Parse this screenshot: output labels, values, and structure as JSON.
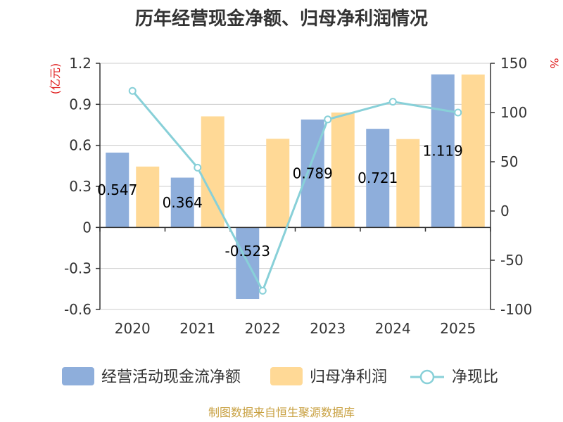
{
  "chart_data": {
    "type": "bar",
    "title": "历年经营现金净额、归母净利润情况",
    "categories": [
      "2020",
      "2021",
      "2022",
      "2023",
      "2024",
      "2025"
    ],
    "series": [
      {
        "name": "经营活动现金流净额",
        "type": "bar",
        "axis": "left",
        "values": [
          0.547,
          0.364,
          -0.523,
          0.789,
          0.721,
          1.119
        ],
        "labels": [
          "0.547",
          "0.364",
          "-0.523",
          "0.789",
          "0.721",
          "1.119"
        ]
      },
      {
        "name": "归母净利润",
        "type": "bar",
        "axis": "left",
        "values": [
          0.445,
          0.812,
          0.648,
          0.84,
          0.646,
          1.118
        ]
      },
      {
        "name": "净现比",
        "type": "line",
        "axis": "right",
        "values": [
          122,
          44,
          -81,
          93,
          111,
          100
        ]
      }
    ],
    "y_left": {
      "unit": "(亿元)",
      "ylim": [
        -0.6,
        1.2
      ],
      "ticks": [
        "1.2",
        "0.9",
        "0.6",
        "0.3",
        "0",
        "-0.3",
        "-0.6"
      ]
    },
    "y_right": {
      "unit": "%",
      "ylim": [
        -100,
        150
      ],
      "ticks": [
        "150",
        "100",
        "50",
        "0",
        "-50",
        "-100"
      ]
    },
    "grid": true,
    "legend_position": "bottom"
  },
  "source": "制图数据来自恒生聚源数据库",
  "colors": {
    "bar1": "#8eaedb",
    "bar2": "#ffd996",
    "line": "#88d0d8",
    "unit": "#e02020",
    "source": "#c8a040",
    "grid": "#cccccc",
    "axis": "#333333"
  }
}
